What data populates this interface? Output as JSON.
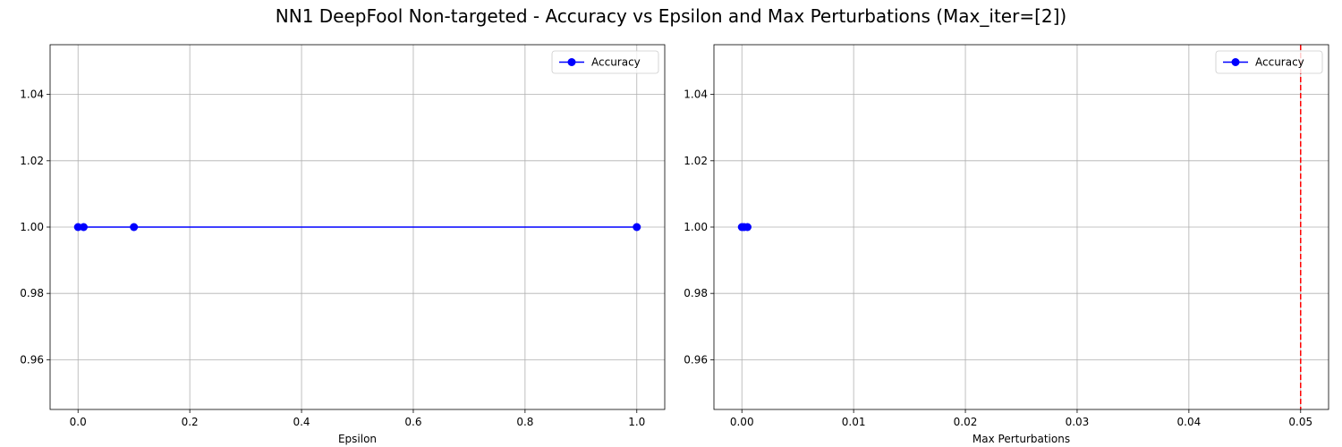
{
  "figure": {
    "title": "NN1 DeepFool Non-targeted - Accuracy vs Epsilon and Max Perturbations (Max_iter=[2])"
  },
  "chart_data": [
    {
      "type": "line",
      "xlabel": "Epsilon",
      "ylabel": "",
      "xlim": [
        -0.05,
        1.05
      ],
      "ylim": [
        0.945,
        1.055
      ],
      "xticks": [
        0.0,
        0.2,
        0.4,
        0.6,
        0.8,
        1.0
      ],
      "xtick_labels": [
        "0.0",
        "0.2",
        "0.4",
        "0.6",
        "0.8",
        "1.0"
      ],
      "yticks": [
        0.96,
        0.98,
        1.0,
        1.02,
        1.04
      ],
      "ytick_labels": [
        "0.96",
        "0.98",
        "1.00",
        "1.02",
        "1.04"
      ],
      "grid": true,
      "legend_position": "top-right",
      "series": [
        {
          "name": "Accuracy",
          "color": "#0000ff",
          "marker": "circle",
          "x": [
            0.0,
            0.01,
            0.1,
            1.0
          ],
          "y": [
            1.0,
            1.0,
            1.0,
            1.0
          ]
        }
      ]
    },
    {
      "type": "line",
      "xlabel": "Max Perturbations",
      "ylabel": "",
      "xlim": [
        -0.0025,
        0.0525
      ],
      "ylim": [
        0.945,
        1.055
      ],
      "xticks": [
        0.0,
        0.01,
        0.02,
        0.03,
        0.04,
        0.05
      ],
      "xtick_labels": [
        "0.00",
        "0.01",
        "0.02",
        "0.03",
        "0.04",
        "0.05"
      ],
      "yticks": [
        0.96,
        0.98,
        1.0,
        1.02,
        1.04
      ],
      "ytick_labels": [
        "0.96",
        "0.98",
        "1.00",
        "1.02",
        "1.04"
      ],
      "grid": true,
      "legend_position": "top-right",
      "reference_line": {
        "orientation": "vertical",
        "x": 0.05,
        "color": "#ff0000",
        "style": "dashed"
      },
      "series": [
        {
          "name": "Accuracy",
          "color": "#0000ff",
          "marker": "circle",
          "x": [
            0.0,
            0.0002,
            0.0005
          ],
          "y": [
            1.0,
            1.0,
            1.0
          ]
        }
      ]
    }
  ]
}
